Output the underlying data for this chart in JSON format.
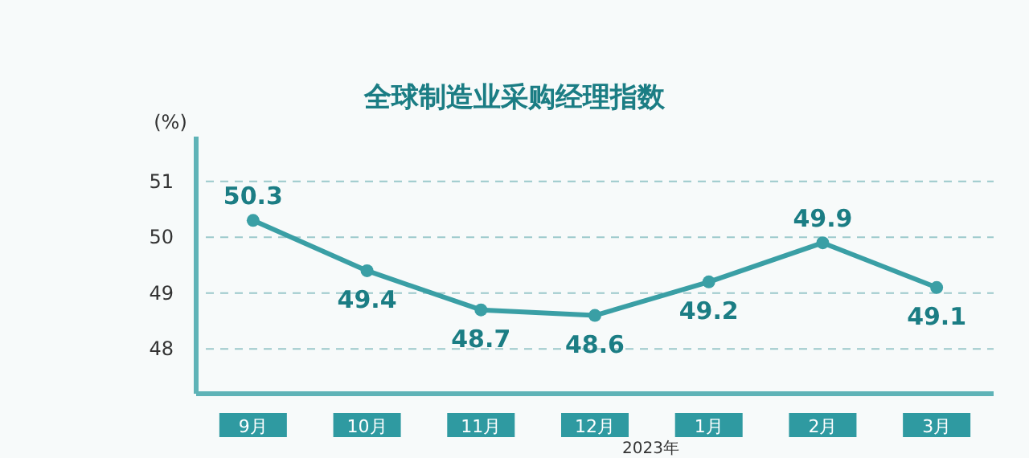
{
  "chart_data": {
    "type": "line",
    "title": "全球制造业采购经理指数",
    "ylabel": "(%)",
    "categories": [
      "9月",
      "10月",
      "11月",
      "12月",
      "1月",
      "2月",
      "3月"
    ],
    "series": [
      {
        "color": "#3a9fa5",
        "values": [
          50.3,
          49.4,
          48.7,
          48.6,
          49.2,
          49.9,
          49.1
        ]
      }
    ],
    "ylim": [
      47.2,
      51.8
    ],
    "yticks": [
      48,
      49,
      50,
      51
    ],
    "grid": "y",
    "marker": "circle",
    "line_style": "solid",
    "data_labels": true,
    "annotations": [
      "2023年"
    ]
  }
}
